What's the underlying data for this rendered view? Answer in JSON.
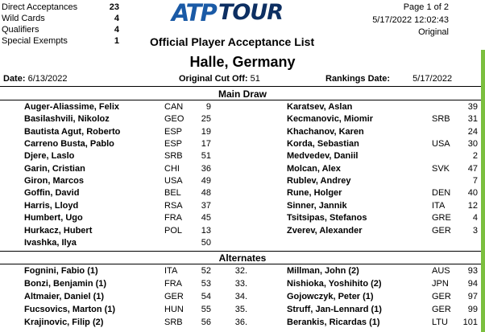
{
  "counts": [
    {
      "label": "Direct Acceptances",
      "value": "23"
    },
    {
      "label": "Wild Cards",
      "value": "4"
    },
    {
      "label": "Qualifiers",
      "value": "4"
    },
    {
      "label": "Special Exempts",
      "value": "1"
    }
  ],
  "logo": {
    "brand": "ATPTOUR",
    "part1": "ATP",
    "part2": "TOUR"
  },
  "doc_title": "Official Player Acceptance List",
  "page_label": "Page 1 of 2",
  "timestamp": "5/17/2022 12:02:43",
  "version": "Original",
  "tournament": "Halle, Germany",
  "date": {
    "label": "Date:",
    "value": "6/13/2022"
  },
  "cutoff": {
    "label": "Original Cut Off:",
    "value": "51"
  },
  "rankings_date": {
    "label": "Rankings Date:",
    "value": "5/17/2022"
  },
  "main_draw": {
    "title": "Main Draw",
    "left": [
      {
        "name": "Auger-Aliassime, Felix",
        "country": "CAN",
        "rank": "9"
      },
      {
        "name": "Basilashvili, Nikoloz",
        "country": "GEO",
        "rank": "25"
      },
      {
        "name": "Bautista Agut, Roberto",
        "country": "ESP",
        "rank": "19"
      },
      {
        "name": "Carreno Busta, Pablo",
        "country": "ESP",
        "rank": "17"
      },
      {
        "name": "Djere, Laslo",
        "country": "SRB",
        "rank": "51"
      },
      {
        "name": "Garin, Cristian",
        "country": "CHI",
        "rank": "36"
      },
      {
        "name": "Giron, Marcos",
        "country": "USA",
        "rank": "49"
      },
      {
        "name": "Goffin, David",
        "country": "BEL",
        "rank": "48"
      },
      {
        "name": "Harris, Lloyd",
        "country": "RSA",
        "rank": "37"
      },
      {
        "name": "Humbert, Ugo",
        "country": "FRA",
        "rank": "45"
      },
      {
        "name": "Hurkacz, Hubert",
        "country": "POL",
        "rank": "13"
      },
      {
        "name": "Ivashka, Ilya",
        "country": "",
        "rank": "50"
      }
    ],
    "right": [
      {
        "name": "Karatsev, Aslan",
        "country": "",
        "rank": "39"
      },
      {
        "name": "Kecmanovic, Miomir",
        "country": "SRB",
        "rank": "31"
      },
      {
        "name": "Khachanov, Karen",
        "country": "",
        "rank": "24"
      },
      {
        "name": "Korda, Sebastian",
        "country": "USA",
        "rank": "30"
      },
      {
        "name": "Medvedev, Daniil",
        "country": "",
        "rank": "2"
      },
      {
        "name": "Molcan, Alex",
        "country": "SVK",
        "rank": "47"
      },
      {
        "name": "Rublev, Andrey",
        "country": "",
        "rank": "7"
      },
      {
        "name": "Rune, Holger",
        "country": "DEN",
        "rank": "40"
      },
      {
        "name": "Sinner, Jannik",
        "country": "ITA",
        "rank": "12"
      },
      {
        "name": "Tsitsipas, Stefanos",
        "country": "GRE",
        "rank": "4"
      },
      {
        "name": "Zverev, Alexander",
        "country": "GER",
        "rank": "3"
      }
    ]
  },
  "alternates": {
    "title": "Alternates",
    "left": [
      {
        "name": "Fognini, Fabio (1)",
        "country": "ITA",
        "rank": "52",
        "seq": "32."
      },
      {
        "name": "Bonzi, Benjamin (1)",
        "country": "FRA",
        "rank": "53",
        "seq": "33."
      },
      {
        "name": "Altmaier, Daniel (1)",
        "country": "GER",
        "rank": "54",
        "seq": "34."
      },
      {
        "name": "Fucsovics, Marton (1)",
        "country": "HUN",
        "rank": "55",
        "seq": "35."
      },
      {
        "name": "Krajinovic, Filip (2)",
        "country": "SRB",
        "rank": "56",
        "seq": "36."
      }
    ],
    "right": [
      {
        "name": "Millman, John (2)",
        "country": "AUS",
        "rank": "93"
      },
      {
        "name": "Nishioka, Yoshihito (2)",
        "country": "JPN",
        "rank": "94"
      },
      {
        "name": "Gojowczyk, Peter (1)",
        "country": "GER",
        "rank": "97"
      },
      {
        "name": "Struff, Jan-Lennard (1)",
        "country": "GER",
        "rank": "99"
      },
      {
        "name": "Berankis, Ricardas (1)",
        "country": "LTU",
        "rank": "101"
      }
    ]
  },
  "colors": {
    "logo_light": "#1a5aa6",
    "logo_dark": "#0d2f62",
    "side_bar": "#7bbf3e"
  }
}
